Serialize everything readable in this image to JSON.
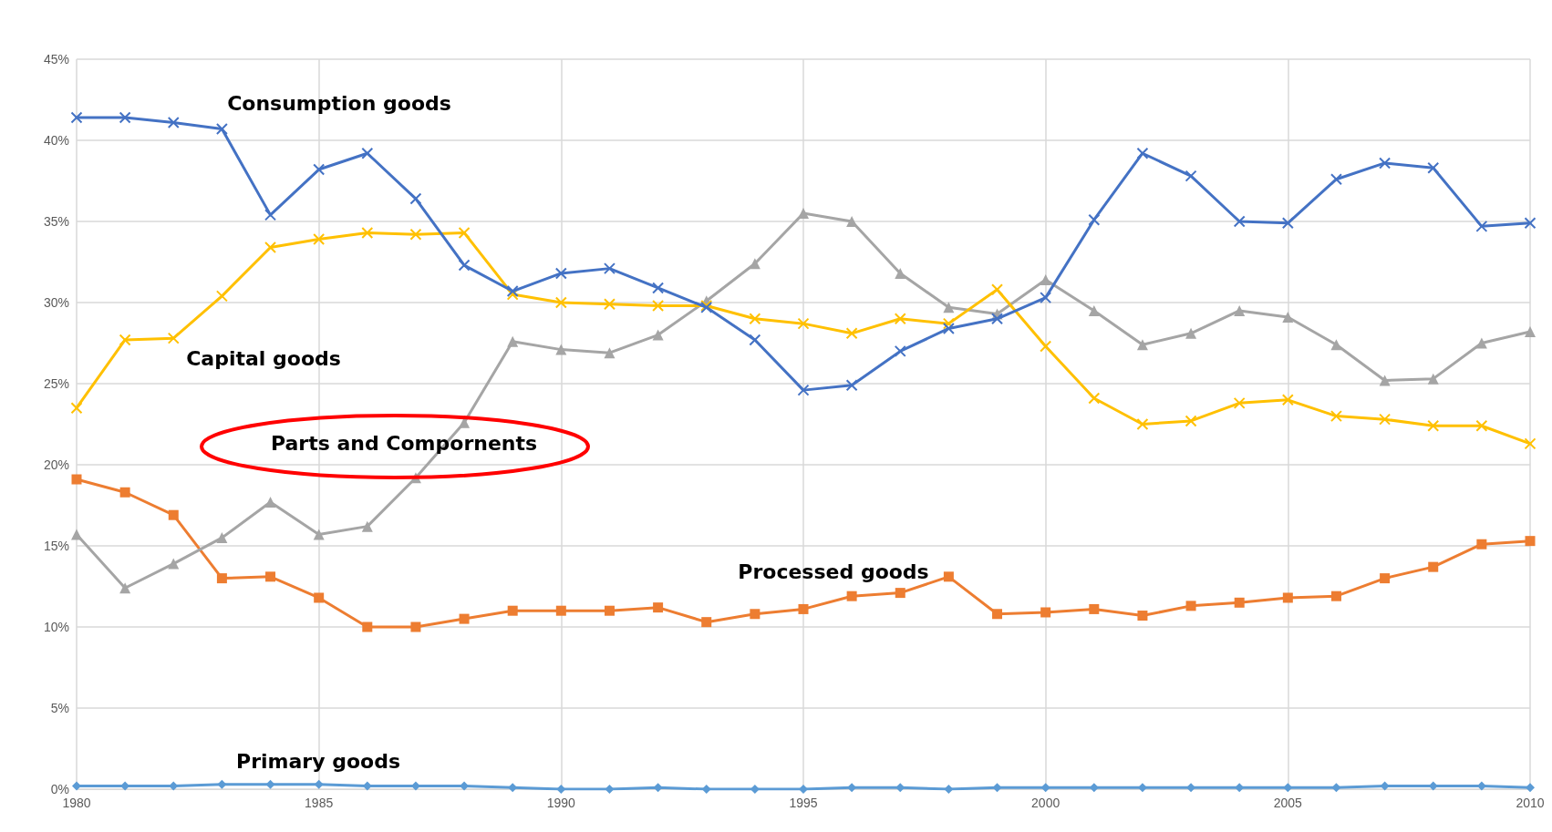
{
  "chart_data": {
    "type": "line",
    "x": [
      1980,
      1981,
      1982,
      1983,
      1984,
      1985,
      1986,
      1987,
      1988,
      1989,
      1990,
      1991,
      1992,
      1993,
      1994,
      1995,
      1996,
      1997,
      1998,
      1999,
      2000,
      2001,
      2002,
      2003,
      2004,
      2005,
      2006,
      2007,
      2008,
      2009,
      2010
    ],
    "series": [
      {
        "name": "Consumption goods",
        "color": "#4472c4",
        "marker": "cross",
        "values": [
          41.4,
          41.4,
          41.1,
          40.7,
          35.4,
          38.2,
          39.2,
          36.4,
          32.3,
          30.7,
          31.8,
          32.1,
          30.9,
          29.7,
          27.7,
          24.6,
          24.9,
          27.0,
          28.4,
          29.0,
          30.3,
          35.1,
          39.2,
          37.8,
          35.0,
          34.9,
          37.6,
          38.6,
          38.3,
          34.7,
          34.9
        ]
      },
      {
        "name": "Capital goods",
        "color": "#ffc000",
        "marker": "cross",
        "values": [
          23.5,
          27.7,
          27.8,
          30.4,
          33.4,
          33.9,
          34.3,
          34.2,
          34.3,
          30.5,
          30.0,
          29.9,
          29.8,
          29.8,
          29.0,
          28.7,
          28.1,
          29.0,
          28.7,
          30.8,
          27.3,
          24.1,
          22.5,
          22.7,
          23.8,
          24.0,
          23.0,
          22.8,
          22.4,
          22.4,
          21.3
        ]
      },
      {
        "name": "Parts and Compornents",
        "color": "#a5a5a5",
        "marker": "triangle",
        "values": [
          15.7,
          12.4,
          13.9,
          15.5,
          17.7,
          15.7,
          16.2,
          19.2,
          22.6,
          27.6,
          27.1,
          26.9,
          28.0,
          30.1,
          32.4,
          35.5,
          35.0,
          31.8,
          29.7,
          29.3,
          31.4,
          29.5,
          27.4,
          28.1,
          29.5,
          29.1,
          27.4,
          25.2,
          25.3,
          27.5,
          28.2
        ]
      },
      {
        "name": "Processed goods",
        "color": "#ed7d31",
        "marker": "square",
        "values": [
          19.1,
          18.3,
          16.9,
          13.0,
          13.1,
          11.8,
          10.0,
          10.0,
          10.5,
          11.0,
          11.0,
          11.0,
          11.2,
          10.3,
          10.8,
          11.1,
          11.9,
          12.1,
          13.1,
          10.8,
          10.9,
          11.1,
          10.7,
          11.3,
          11.5,
          11.8,
          11.9,
          13.0,
          13.7,
          15.1,
          15.3
        ]
      },
      {
        "name": "Primary goods",
        "color": "#5b9bd5",
        "marker": "diamond",
        "values": [
          0.2,
          0.2,
          0.2,
          0.3,
          0.3,
          0.3,
          0.2,
          0.2,
          0.2,
          0.1,
          0.0,
          0.0,
          0.1,
          0.0,
          0.0,
          0.0,
          0.1,
          0.1,
          0.0,
          0.1,
          0.1,
          0.1,
          0.1,
          0.1,
          0.1,
          0.1,
          0.1,
          0.2,
          0.2,
          0.2,
          0.1
        ]
      }
    ],
    "xlim": [
      1980,
      2010
    ],
    "xticks": [
      1980,
      1985,
      1990,
      1995,
      2000,
      2005,
      2010
    ],
    "ylim": [
      0,
      45
    ],
    "yticks": [
      {
        "value": 0,
        "label": "0%"
      },
      {
        "value": 5,
        "label": "5%"
      },
      {
        "value": 10,
        "label": "10%"
      },
      {
        "value": 15,
        "label": "15%"
      },
      {
        "value": 20,
        "label": "20%"
      },
      {
        "value": 25,
        "label": "25%"
      },
      {
        "value": 30,
        "label": "30%"
      },
      {
        "value": 35,
        "label": "35%"
      },
      {
        "value": 40,
        "label": "40%"
      },
      {
        "value": 45,
        "label": "45%"
      }
    ],
    "grid": true,
    "legend": false,
    "line_style": "solid"
  }
}
